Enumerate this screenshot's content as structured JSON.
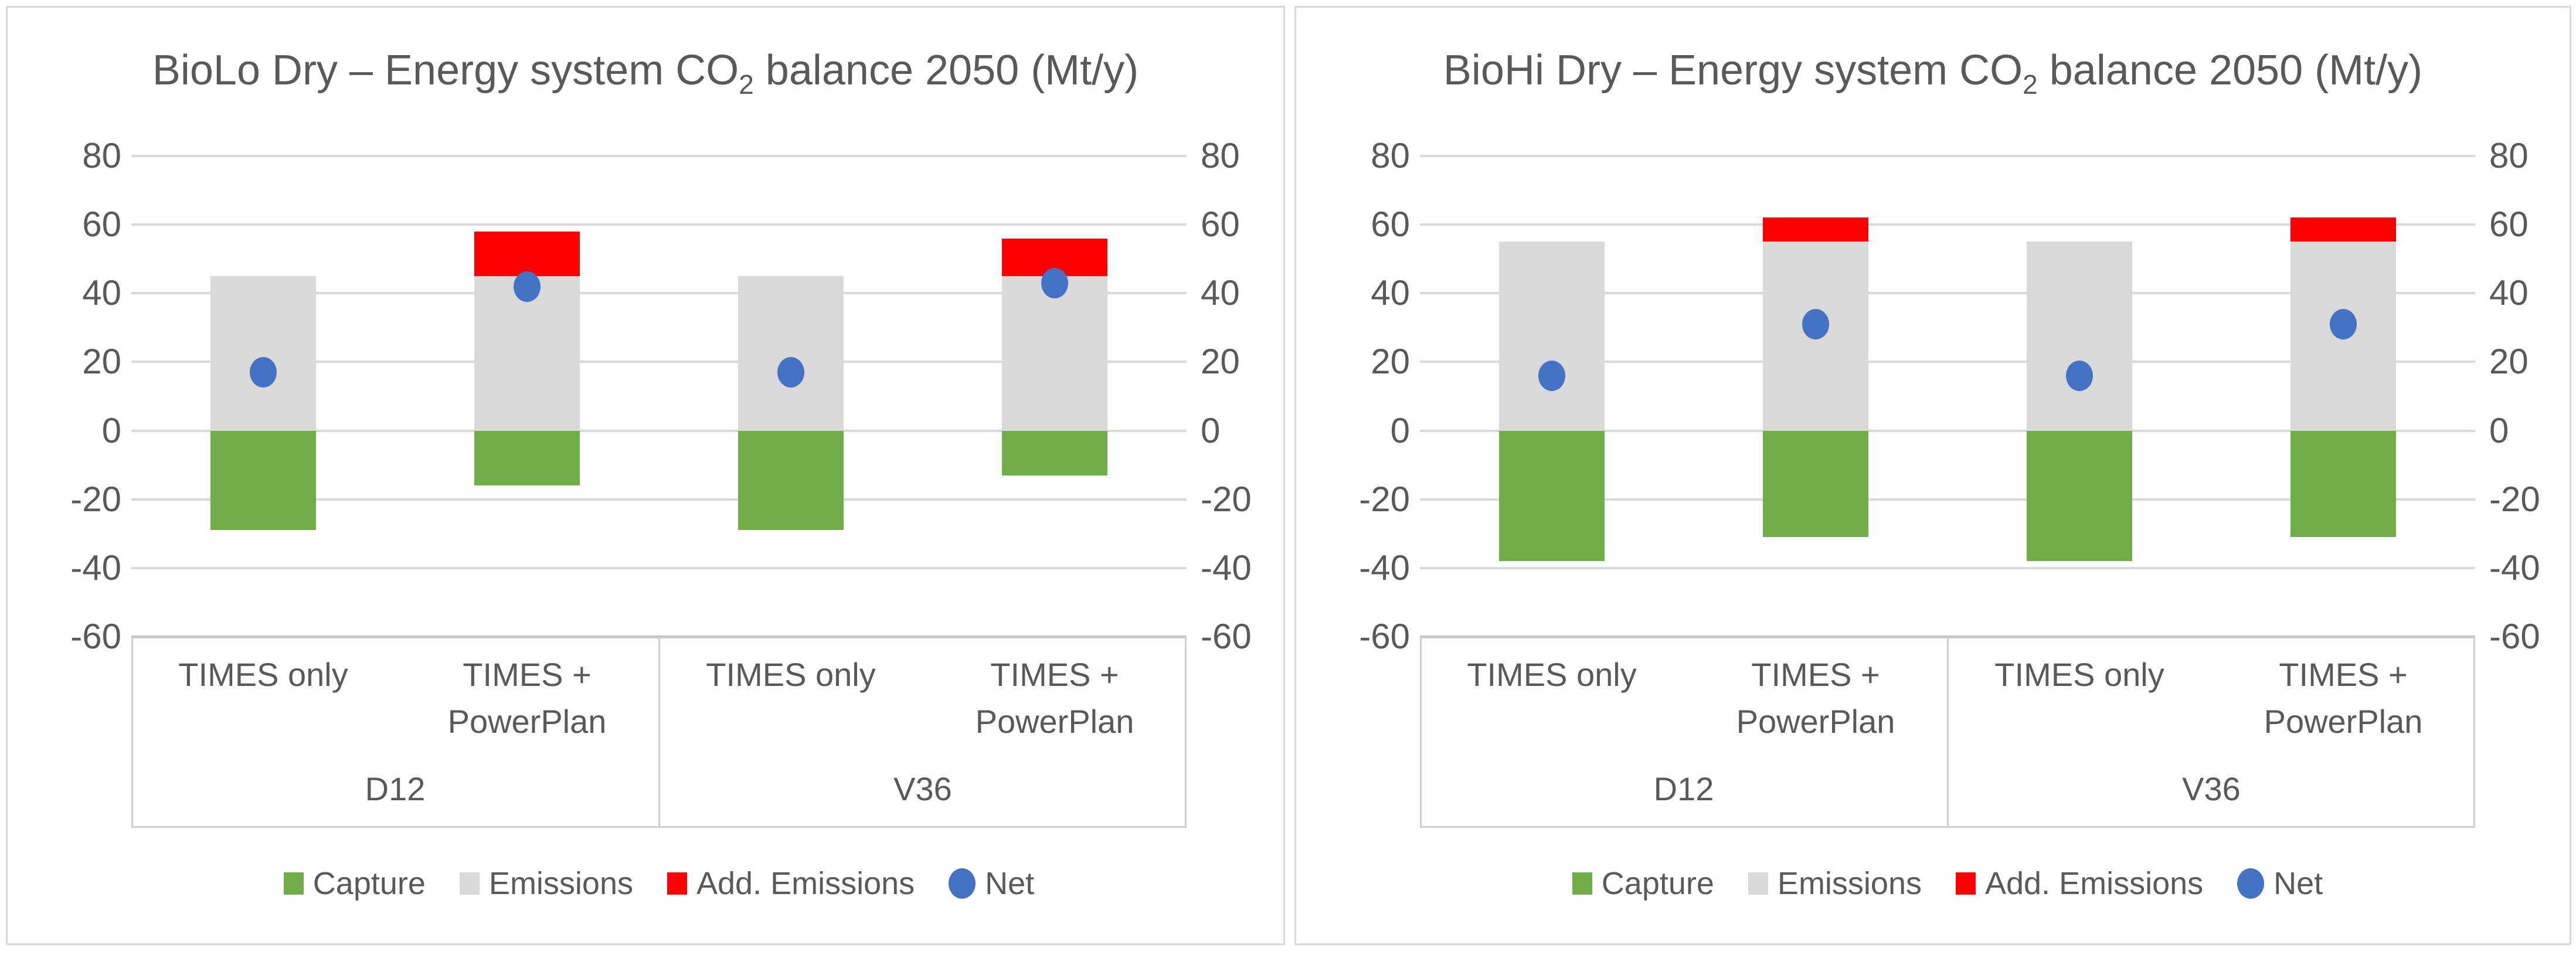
{
  "colors": {
    "capture": "#70AD47",
    "emissions": "#D9D9D9",
    "add_emissions": "#FF0000",
    "net": "#4472C4",
    "text": "#595959",
    "gridline": "#D9D9D9",
    "axis_line": "#BFBFBF",
    "panel_border": "#D9D9D9",
    "background": "#FFFFFF"
  },
  "charts": [
    {
      "title": {
        "prefix": "BioLo Dry – Energy system CO",
        "sub": "2",
        "suffix": " balance 2050 (Mt/y)"
      },
      "axis": {
        "yticks": [
          80,
          60,
          40,
          20,
          0,
          -20,
          -40,
          -60
        ]
      },
      "groups": [
        {
          "label": "D12",
          "items": [
            "TIMES only",
            "TIMES +\nPowerPlan"
          ]
        },
        {
          "label": "V36",
          "items": [
            "TIMES only",
            "TIMES +\nPowerPlan"
          ]
        }
      ],
      "legend": [
        {
          "label": "Capture",
          "marker": "square",
          "color": "#70AD47"
        },
        {
          "label": "Emissions",
          "marker": "square",
          "color": "#D9D9D9"
        },
        {
          "label": "Add. Emissions",
          "marker": "square",
          "color": "#FF0000"
        },
        {
          "label": "Net",
          "marker": "circle",
          "color": "#4472C4"
        }
      ]
    },
    {
      "title": {
        "prefix": "BioHi Dry – Energy system CO",
        "sub": "2",
        "suffix": " balance 2050 (Mt/y)"
      },
      "axis": {
        "yticks": [
          80,
          60,
          40,
          20,
          0,
          -20,
          -40,
          -60
        ]
      },
      "groups": [
        {
          "label": "D12",
          "items": [
            "TIMES only",
            "TIMES +\nPowerPlan"
          ]
        },
        {
          "label": "V36",
          "items": [
            "TIMES only",
            "TIMES +\nPowerPlan"
          ]
        }
      ],
      "legend": [
        {
          "label": "Capture",
          "marker": "square",
          "color": "#70AD47"
        },
        {
          "label": "Emissions",
          "marker": "square",
          "color": "#D9D9D9"
        },
        {
          "label": "Add. Emissions",
          "marker": "square",
          "color": "#FF0000"
        },
        {
          "label": "Net",
          "marker": "circle",
          "color": "#4472C4"
        }
      ]
    }
  ],
  "chart_data": [
    {
      "type": "bar",
      "title": "BioLo Dry – Energy system CO2 balance 2050 (Mt/y)",
      "categories": [
        "D12 | TIMES only",
        "D12 | TIMES + PowerPlan",
        "V36 | TIMES only",
        "V36 | TIMES + PowerPlan"
      ],
      "series": [
        {
          "name": "Capture",
          "type": "bar",
          "color": "#70AD47",
          "values": [
            -29,
            -16,
            -29,
            -13
          ]
        },
        {
          "name": "Emissions",
          "type": "bar",
          "color": "#D9D9D9",
          "values": [
            45,
            45,
            45,
            45
          ]
        },
        {
          "name": "Add. Emissions",
          "type": "bar",
          "color": "#FF0000",
          "values": [
            0,
            13,
            0,
            11
          ]
        },
        {
          "name": "Net",
          "type": "scatter",
          "color": "#4472C4",
          "values": [
            17,
            42,
            17,
            43
          ]
        }
      ],
      "stacking": "Emissions and Add. Emissions stacked above 0; Capture below 0; Net drawn as point markers",
      "ylim": [
        -60,
        80
      ],
      "ytick_step": 20,
      "grid": true,
      "dual_value_axes": true,
      "legend_position": "bottom"
    },
    {
      "type": "bar",
      "title": "BioHi Dry – Energy system CO2 balance 2050 (Mt/y)",
      "categories": [
        "D12 | TIMES only",
        "D12 | TIMES + PowerPlan",
        "V36 | TIMES only",
        "V36 | TIMES + PowerPlan"
      ],
      "series": [
        {
          "name": "Capture",
          "type": "bar",
          "color": "#70AD47",
          "values": [
            -38,
            -31,
            -38,
            -31
          ]
        },
        {
          "name": "Emissions",
          "type": "bar",
          "color": "#D9D9D9",
          "values": [
            55,
            55,
            55,
            55
          ]
        },
        {
          "name": "Add. Emissions",
          "type": "bar",
          "color": "#FF0000",
          "values": [
            0,
            7,
            0,
            7
          ]
        },
        {
          "name": "Net",
          "type": "scatter",
          "color": "#4472C4",
          "values": [
            16,
            31,
            16,
            31
          ]
        }
      ],
      "stacking": "Emissions and Add. Emissions stacked above 0; Capture below 0; Net drawn as point markers",
      "ylim": [
        -60,
        80
      ],
      "ytick_step": 20,
      "grid": true,
      "dual_value_axes": true,
      "legend_position": "bottom"
    }
  ]
}
